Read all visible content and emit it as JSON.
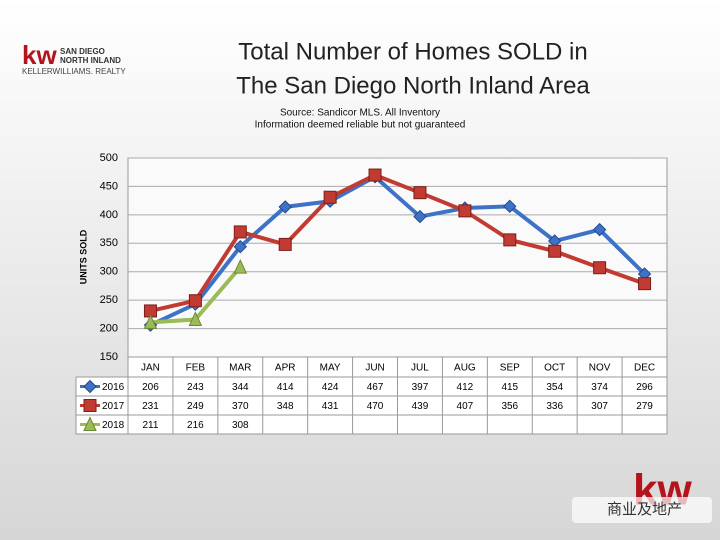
{
  "branding": {
    "logo_mark": "kw",
    "logo_line1": "SAN DIEGO",
    "logo_line2": "NORTH INLAND",
    "logo_company": "KELLERWILLIAMS. REALTY",
    "watermark": "商业及地产",
    "corner_mark": "kw"
  },
  "chart_data": {
    "type": "line",
    "title": [
      "Total Number of Homes SOLD in",
      "The San Diego North Inland Area"
    ],
    "subtitle": [
      "Source: Sandicor MLS. All Inventory",
      "Information deemed reliable but not guaranteed"
    ],
    "y_label": "UNITS SOLD",
    "categories": [
      "JAN",
      "FEB",
      "MAR",
      "APR",
      "MAY",
      "JUN",
      "JUL",
      "AUG",
      "SEP",
      "OCT",
      "NOV",
      "DEC"
    ],
    "series": [
      {
        "name": "2016",
        "color": "#3d72c7",
        "marker": "diamond",
        "values": [
          206,
          243,
          344,
          414,
          424,
          467,
          397,
          412,
          415,
          354,
          374,
          296
        ]
      },
      {
        "name": "2017",
        "color": "#c23b32",
        "marker": "square",
        "values": [
          231,
          249,
          370,
          348,
          431,
          470,
          439,
          407,
          356,
          336,
          307,
          279
        ]
      },
      {
        "name": "2018",
        "color": "#9bbb59",
        "marker": "triangle",
        "values": [
          211,
          216,
          308,
          null,
          null,
          null,
          null,
          null,
          null,
          null,
          null,
          null
        ]
      }
    ],
    "ylim": [
      150,
      500
    ],
    "yticks": [
      150,
      200,
      250,
      300,
      350,
      400,
      450,
      500
    ],
    "grid": true
  }
}
